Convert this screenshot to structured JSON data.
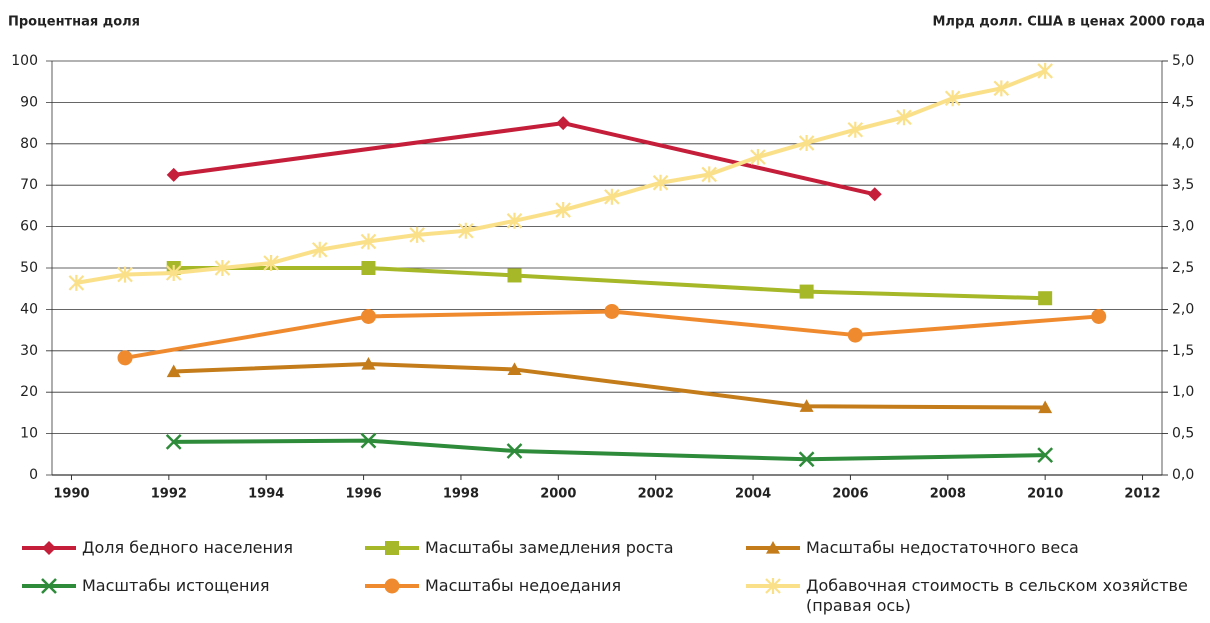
{
  "chart_data": {
    "type": "line",
    "y_label": "Процентная доля",
    "y2_label": "Млрд долл. США в ценах 2000 года",
    "xlim": [
      1989.6,
      2012.4
    ],
    "xticks": [
      1990,
      1992,
      1994,
      1996,
      1998,
      2000,
      2002,
      2004,
      2006,
      2008,
      2010,
      2012
    ],
    "ylim": [
      0,
      100
    ],
    "yticks": [
      0,
      10,
      20,
      30,
      40,
      50,
      60,
      70,
      80,
      90,
      100
    ],
    "y2lim": [
      0,
      5
    ],
    "y2ticks": [
      {
        "value": 0,
        "label": "0,0"
      },
      {
        "value": 0.5,
        "label": "0,5"
      },
      {
        "value": 1,
        "label": "1,0"
      },
      {
        "value": 1.5,
        "label": "1,5"
      },
      {
        "value": 2,
        "label": "2,0"
      },
      {
        "value": 2.5,
        "label": "2,5"
      },
      {
        "value": 3,
        "label": "3,0"
      },
      {
        "value": 3.5,
        "label": "3,5"
      },
      {
        "value": 4,
        "label": "4,0"
      },
      {
        "value": 4.5,
        "label": "4,5"
      },
      {
        "value": 5,
        "label": "5,0"
      }
    ],
    "grid": true,
    "series": [
      {
        "name": "Доля бедного населения",
        "color": "#c41e3a",
        "marker": "diamond",
        "x": [
          1992.1,
          2000.1,
          2006.5
        ],
        "values": [
          72.5,
          85,
          67.8
        ]
      },
      {
        "name": "Масштабы замедления роста",
        "color": "#a6b727",
        "marker": "square",
        "x": [
          1992.1,
          1996.1,
          1999.1,
          2005.1,
          2010.0
        ],
        "values": [
          50,
          50,
          48.2,
          44.3,
          42.7
        ]
      },
      {
        "name": "Масштабы недостаточного веса",
        "color": "#c47c1a",
        "marker": "triangle",
        "x": [
          1992.1,
          1996.1,
          1999.1,
          2005.1,
          2010.0
        ],
        "values": [
          25,
          26.8,
          25.5,
          16.6,
          16.3
        ]
      },
      {
        "name": "Масштабы истощения",
        "color": "#2e8b3a",
        "marker": "cross",
        "x": [
          1992.1,
          1996.1,
          1999.1,
          2005.1,
          2010.0
        ],
        "values": [
          8,
          8.3,
          5.8,
          3.8,
          4.8
        ]
      },
      {
        "name": "Масштабы недоедания",
        "color": "#f08a2e",
        "marker": "circle",
        "x": [
          1991.1,
          1996.1,
          2001.1,
          2006.1,
          2011.1
        ],
        "values": [
          28.3,
          38.3,
          39.5,
          33.8,
          38.3
        ]
      },
      {
        "name": "Добавочная стоимость в сельском хозяйстве (правая ось)",
        "color": "#fbe08a",
        "marker": "star",
        "axis": "y2",
        "x": [
          1990.1,
          1991.1,
          1992.1,
          1993.1,
          1994.1,
          1995.1,
          1996.1,
          1997.1,
          1998.1,
          1999.1,
          2000.1,
          2001.1,
          2002.1,
          2003.1,
          2004.1,
          2005.1,
          2006.1,
          2007.1,
          2008.1,
          2009.1,
          2010.0
        ],
        "values": [
          2.32,
          2.42,
          2.44,
          2.5,
          2.56,
          2.72,
          2.82,
          2.9,
          2.95,
          3.07,
          3.2,
          3.36,
          3.53,
          3.63,
          3.84,
          4.01,
          4.17,
          4.32,
          4.55,
          4.67,
          4.88
        ]
      }
    ]
  }
}
